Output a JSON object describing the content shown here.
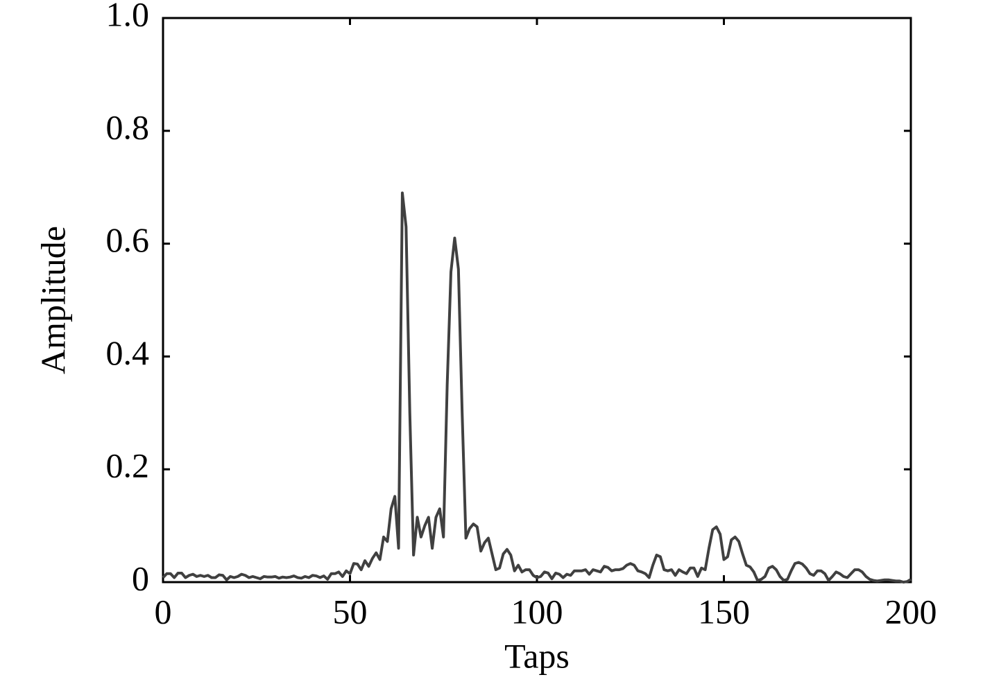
{
  "chart_data": {
    "type": "line",
    "xlabel": "Taps",
    "ylabel": "Amplitude",
    "x": [
      0,
      1,
      2,
      3,
      4,
      5,
      6,
      7,
      8,
      9,
      10,
      11,
      12,
      13,
      14,
      15,
      16,
      17,
      18,
      19,
      20,
      21,
      22,
      23,
      24,
      25,
      26,
      27,
      28,
      29,
      30,
      31,
      32,
      33,
      34,
      35,
      36,
      37,
      38,
      39,
      40,
      41,
      42,
      43,
      44,
      45,
      46,
      47,
      48,
      49,
      50,
      51,
      52,
      53,
      54,
      55,
      56,
      57,
      58,
      59,
      60,
      61,
      62,
      63,
      64,
      65,
      66,
      67,
      68,
      69,
      70,
      71,
      72,
      73,
      74,
      75,
      76,
      77,
      78,
      79,
      80,
      81,
      82,
      83,
      84,
      85,
      86,
      87,
      88,
      89,
      90,
      91,
      92,
      93,
      94,
      95,
      96,
      97,
      98,
      99,
      100,
      101,
      102,
      103,
      104,
      105,
      106,
      107,
      108,
      109,
      110,
      111,
      112,
      113,
      114,
      115,
      116,
      117,
      118,
      119,
      120,
      121,
      122,
      123,
      124,
      125,
      126,
      127,
      128,
      129,
      130,
      131,
      132,
      133,
      134,
      135,
      136,
      137,
      138,
      139,
      140,
      141,
      142,
      143,
      144,
      145,
      146,
      147,
      148,
      149,
      150,
      151,
      152,
      153,
      154,
      155,
      156,
      157,
      158,
      159,
      160,
      161,
      162,
      163,
      164,
      165,
      166,
      167,
      168,
      169,
      170,
      171,
      172,
      173,
      174,
      175,
      176,
      177,
      178,
      179,
      180,
      181,
      182,
      183,
      184,
      185,
      186,
      187,
      188,
      189,
      190,
      191,
      192,
      193,
      194,
      195,
      196,
      197,
      198,
      199,
      200
    ],
    "series": [
      {
        "color": "#404040",
        "values": [
          0.008,
          0.015,
          0.015,
          0.008,
          0.016,
          0.016,
          0.008,
          0.012,
          0.014,
          0.01,
          0.012,
          0.01,
          0.012,
          0.008,
          0.008,
          0.013,
          0.012,
          0.004,
          0.01,
          0.008,
          0.01,
          0.014,
          0.012,
          0.008,
          0.01,
          0.008,
          0.006,
          0.01,
          0.009,
          0.009,
          0.01,
          0.007,
          0.009,
          0.008,
          0.009,
          0.011,
          0.008,
          0.007,
          0.01,
          0.008,
          0.012,
          0.011,
          0.008,
          0.011,
          0.005,
          0.015,
          0.015,
          0.018,
          0.01,
          0.02,
          0.015,
          0.033,
          0.032,
          0.022,
          0.038,
          0.028,
          0.042,
          0.052,
          0.04,
          0.08,
          0.072,
          0.13,
          0.152,
          0.06,
          0.69,
          0.63,
          0.3,
          0.048,
          0.115,
          0.08,
          0.1,
          0.115,
          0.06,
          0.115,
          0.13,
          0.08,
          0.35,
          0.55,
          0.61,
          0.555,
          0.3,
          0.078,
          0.095,
          0.103,
          0.098,
          0.055,
          0.07,
          0.078,
          0.05,
          0.022,
          0.025,
          0.05,
          0.058,
          0.048,
          0.02,
          0.03,
          0.018,
          0.022,
          0.022,
          0.012,
          0.008,
          0.01,
          0.018,
          0.016,
          0.006,
          0.016,
          0.014,
          0.008,
          0.014,
          0.012,
          0.02,
          0.02,
          0.02,
          0.022,
          0.014,
          0.022,
          0.02,
          0.018,
          0.028,
          0.026,
          0.02,
          0.022,
          0.022,
          0.024,
          0.03,
          0.033,
          0.03,
          0.02,
          0.018,
          0.015,
          0.008,
          0.03,
          0.048,
          0.045,
          0.022,
          0.02,
          0.022,
          0.012,
          0.022,
          0.018,
          0.015,
          0.025,
          0.025,
          0.01,
          0.025,
          0.022,
          0.06,
          0.093,
          0.098,
          0.085,
          0.04,
          0.045,
          0.075,
          0.08,
          0.072,
          0.05,
          0.03,
          0.027,
          0.018,
          0.003,
          0.005,
          0.01,
          0.025,
          0.028,
          0.022,
          0.01,
          0.003,
          0.005,
          0.02,
          0.033,
          0.035,
          0.032,
          0.025,
          0.015,
          0.012,
          0.02,
          0.02,
          0.015,
          0.003,
          0.01,
          0.018,
          0.015,
          0.01,
          0.008,
          0.015,
          0.022,
          0.022,
          0.018,
          0.01,
          0.005,
          0.003,
          0.002,
          0.003,
          0.004,
          0.004,
          0.003,
          0.002,
          0.002,
          0,
          0.001,
          0.005
        ]
      }
    ],
    "xlim": [
      0,
      200
    ],
    "xticks": [
      0,
      50,
      100,
      150,
      200
    ],
    "ylim": [
      0,
      1
    ],
    "yticks": [
      0,
      0.2,
      0.4,
      0.6,
      0.8,
      {
        "value": 1,
        "label": "1.0"
      }
    ],
    "grid": false
  }
}
